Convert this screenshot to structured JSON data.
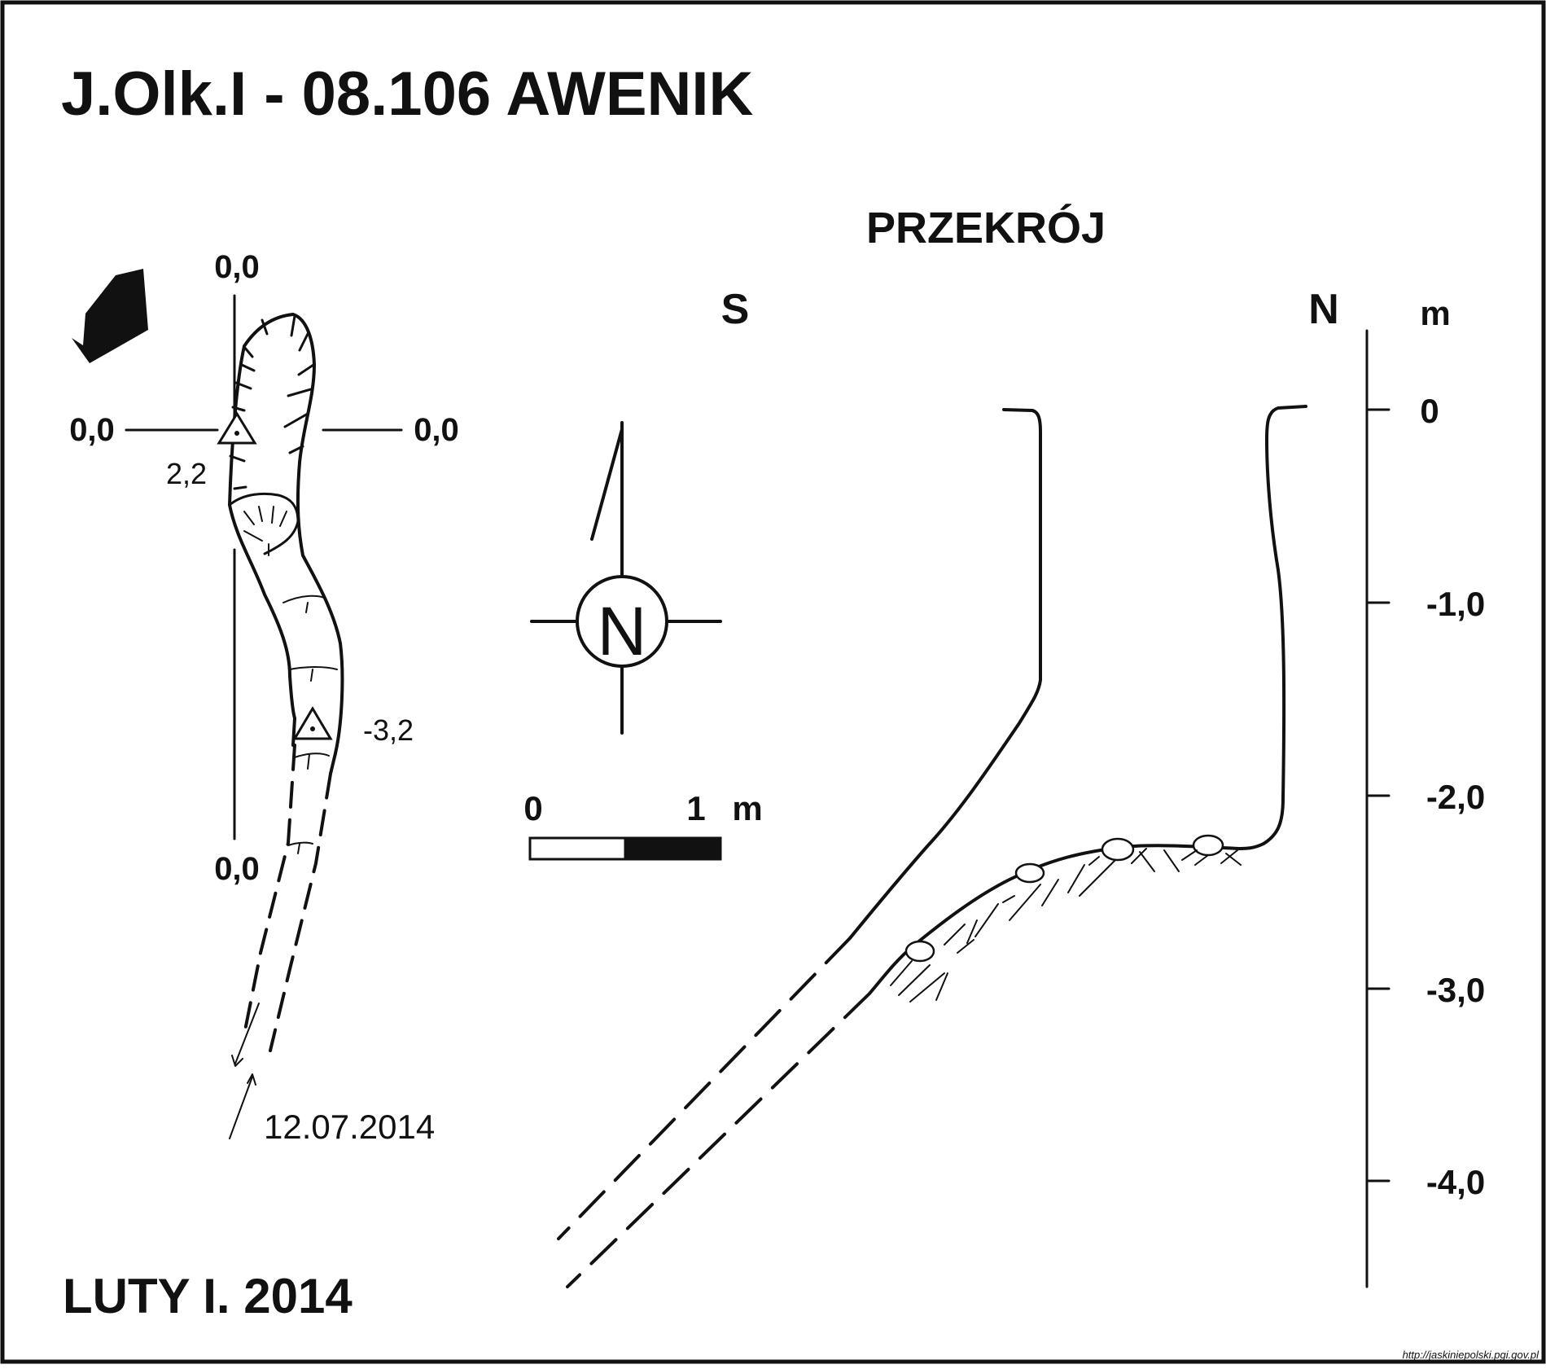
{
  "title": "J.Olk.I - 08.106 AWENIK",
  "author_date": "LUTY I. 2014",
  "source_url": "http://jaskiniepolski.pgi.gov.pl",
  "plan": {
    "axis_labels": {
      "top": "0,0",
      "left": "0,0",
      "right": "0,0",
      "bottom": "0,0"
    },
    "station_1_label": "2,2",
    "station_2_label": "-3,2",
    "survey_date": "12.07.2014"
  },
  "compass": {
    "letter": "N"
  },
  "scale_bar": {
    "start_label": "0",
    "end_label": "1",
    "unit_label": "m"
  },
  "section": {
    "title": "PRZEKRÓJ",
    "left_direction": "S",
    "right_direction": "N",
    "unit": "m",
    "depth_ticks": [
      "0",
      "-1,0",
      "-2,0",
      "-3,0",
      "-4,0"
    ]
  },
  "colors": {
    "ink": "#111111",
    "paper": "#ffffff"
  }
}
